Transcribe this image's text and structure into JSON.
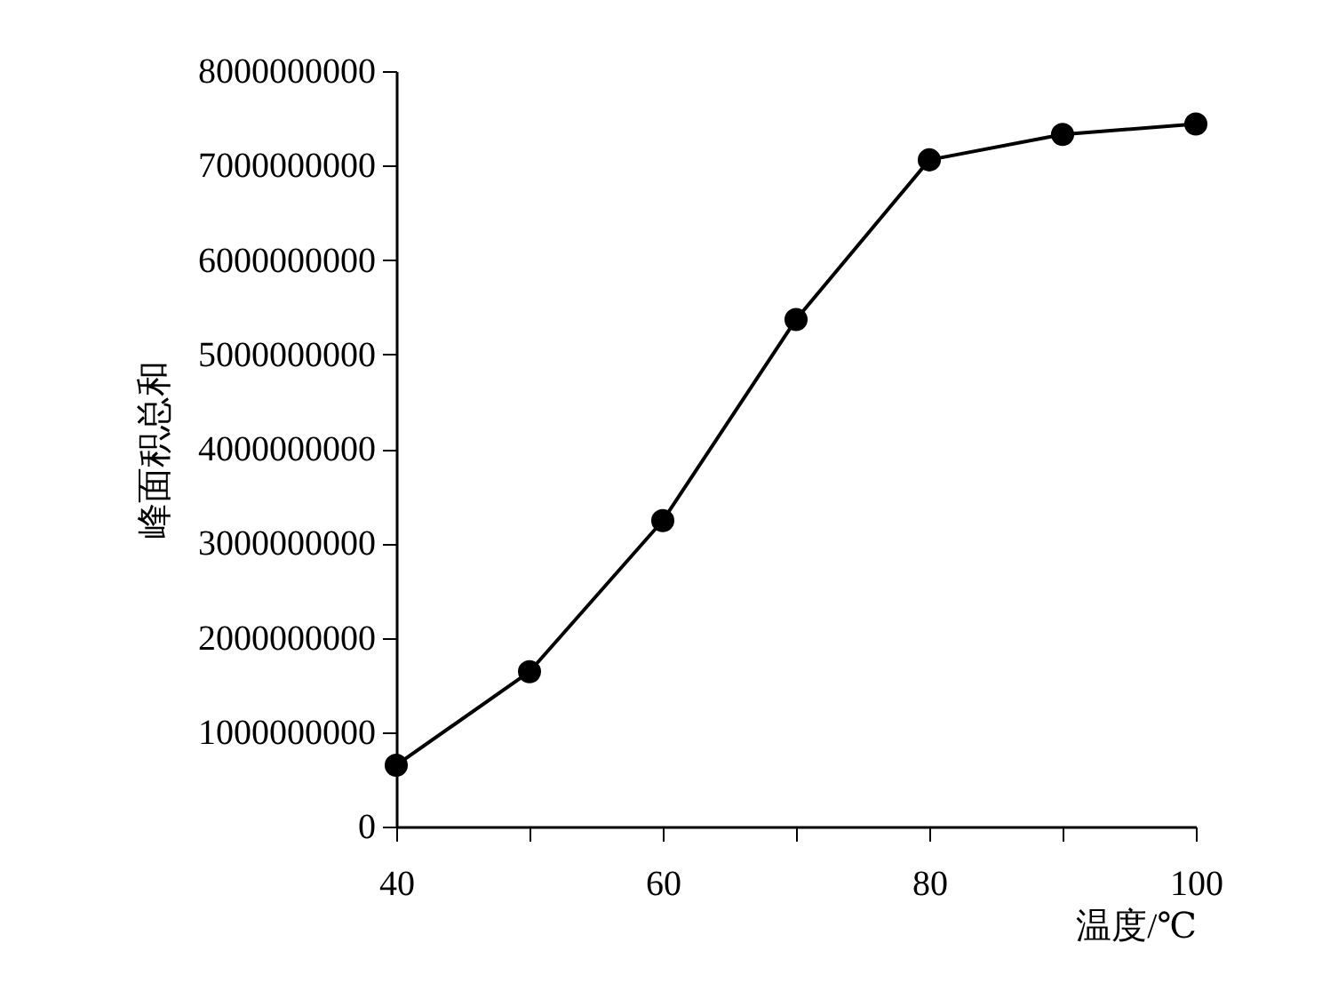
{
  "chart_data": {
    "type": "line",
    "xlabel": "温度/℃",
    "ylabel": "峰面积总和",
    "x": [
      40,
      50,
      60,
      70,
      80,
      90,
      100
    ],
    "series": [
      {
        "color": "#000000",
        "values": [
          650000000,
          1640000000,
          3240000000,
          5370000000,
          7060000000,
          7330000000,
          7440000000
        ]
      }
    ],
    "xlim": [
      40,
      100
    ],
    "xticks": [
      40,
      {
        "value": 50,
        "label": null
      },
      60,
      {
        "value": 70,
        "label": null
      },
      80,
      {
        "value": 90,
        "label": null
      },
      100
    ],
    "ylim": [
      0,
      8000000000
    ],
    "yticks": [
      0,
      1000000000,
      2000000000,
      3000000000,
      4000000000,
      5000000000,
      6000000000,
      7000000000,
      8000000000
    ],
    "grid": false,
    "legend": false,
    "marker": "circle",
    "line_style": "solid"
  }
}
